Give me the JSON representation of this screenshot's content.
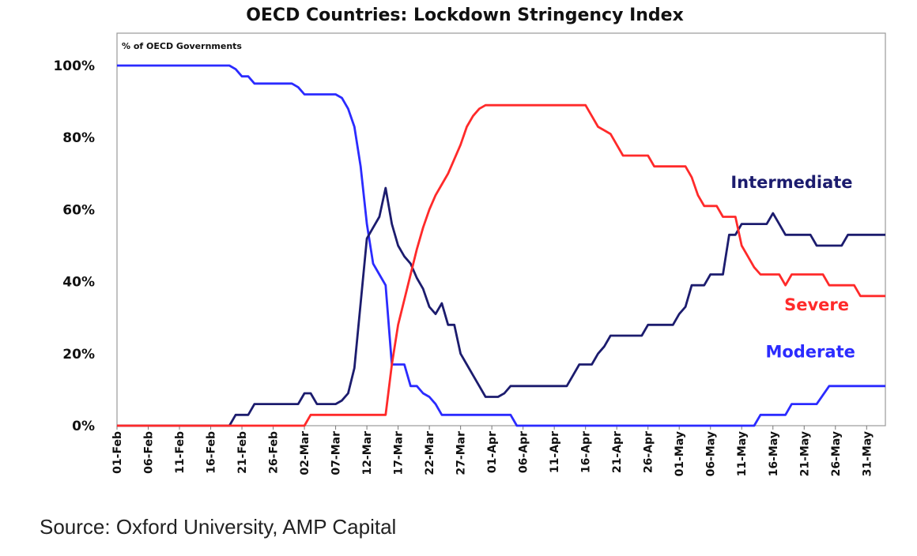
{
  "chart_data": {
    "type": "line",
    "title": "OECD Countries: Lockdown Stringency Index",
    "ylabel": "% of OECD Governments",
    "xlabel": "",
    "ylim": [
      0,
      100
    ],
    "y_ticks": [
      "0%",
      "20%",
      "40%",
      "60%",
      "80%",
      "100%"
    ],
    "x_start": "2020-02-01",
    "x_end": "2020-06-03",
    "x_ticks": [
      "01-Feb",
      "06-Feb",
      "11-Feb",
      "16-Feb",
      "21-Feb",
      "26-Feb",
      "02-Mar",
      "07-Mar",
      "12-Mar",
      "17-Mar",
      "22-Mar",
      "27-Mar",
      "01-Apr",
      "06-Apr",
      "11-Apr",
      "16-Apr",
      "21-Apr",
      "26-Apr",
      "01-May",
      "06-May",
      "11-May",
      "16-May",
      "21-May",
      "26-May",
      "31-May"
    ],
    "grid": false,
    "series": [
      {
        "name": "Moderate",
        "color": "#2b2bff",
        "points": [
          [
            "2020-02-01",
            100
          ],
          [
            "2020-02-19",
            100
          ],
          [
            "2020-02-20",
            99
          ],
          [
            "2020-02-21",
            97
          ],
          [
            "2020-02-22",
            97
          ],
          [
            "2020-02-23",
            95
          ],
          [
            "2020-02-24",
            95
          ],
          [
            "2020-02-29",
            95
          ],
          [
            "2020-03-01",
            94
          ],
          [
            "2020-03-02",
            92
          ],
          [
            "2020-03-07",
            92
          ],
          [
            "2020-03-08",
            91
          ],
          [
            "2020-03-09",
            88
          ],
          [
            "2020-03-10",
            83
          ],
          [
            "2020-03-11",
            72
          ],
          [
            "2020-03-12",
            56
          ],
          [
            "2020-03-13",
            45
          ],
          [
            "2020-03-14",
            42
          ],
          [
            "2020-03-15",
            39
          ],
          [
            "2020-03-16",
            17
          ],
          [
            "2020-03-17",
            17
          ],
          [
            "2020-03-18",
            17
          ],
          [
            "2020-03-19",
            11
          ],
          [
            "2020-03-20",
            11
          ],
          [
            "2020-03-21",
            9
          ],
          [
            "2020-03-22",
            8
          ],
          [
            "2020-03-23",
            6
          ],
          [
            "2020-03-24",
            3
          ],
          [
            "2020-03-31",
            3
          ],
          [
            "2020-04-04",
            3
          ],
          [
            "2020-04-05",
            0
          ],
          [
            "2020-05-13",
            0
          ],
          [
            "2020-05-14",
            3
          ],
          [
            "2020-05-18",
            3
          ],
          [
            "2020-05-19",
            6
          ],
          [
            "2020-05-23",
            6
          ],
          [
            "2020-05-25",
            11
          ],
          [
            "2020-06-03",
            11
          ]
        ]
      },
      {
        "name": "Intermediate",
        "color": "#1c1c6e",
        "points": [
          [
            "2020-02-01",
            0
          ],
          [
            "2020-02-19",
            0
          ],
          [
            "2020-02-20",
            3
          ],
          [
            "2020-02-22",
            3
          ],
          [
            "2020-02-23",
            6
          ],
          [
            "2020-02-29",
            6
          ],
          [
            "2020-03-01",
            6
          ],
          [
            "2020-03-02",
            9
          ],
          [
            "2020-03-03",
            9
          ],
          [
            "2020-03-04",
            6
          ],
          [
            "2020-03-07",
            6
          ],
          [
            "2020-03-08",
            7
          ],
          [
            "2020-03-09",
            9
          ],
          [
            "2020-03-10",
            16
          ],
          [
            "2020-03-11",
            34
          ],
          [
            "2020-03-12",
            52
          ],
          [
            "2020-03-13",
            55
          ],
          [
            "2020-03-14",
            58
          ],
          [
            "2020-03-15",
            66
          ],
          [
            "2020-03-16",
            56
          ],
          [
            "2020-03-17",
            50
          ],
          [
            "2020-03-18",
            47
          ],
          [
            "2020-03-19",
            45
          ],
          [
            "2020-03-20",
            41
          ],
          [
            "2020-03-21",
            38
          ],
          [
            "2020-03-22",
            33
          ],
          [
            "2020-03-23",
            31
          ],
          [
            "2020-03-24",
            34
          ],
          [
            "2020-03-25",
            28
          ],
          [
            "2020-03-26",
            28
          ],
          [
            "2020-03-27",
            20
          ],
          [
            "2020-03-28",
            17
          ],
          [
            "2020-03-29",
            14
          ],
          [
            "2020-03-30",
            11
          ],
          [
            "2020-03-31",
            8
          ],
          [
            "2020-04-02",
            8
          ],
          [
            "2020-04-03",
            9
          ],
          [
            "2020-04-04",
            11
          ],
          [
            "2020-04-13",
            11
          ],
          [
            "2020-04-14",
            14
          ],
          [
            "2020-04-15",
            17
          ],
          [
            "2020-04-17",
            17
          ],
          [
            "2020-04-18",
            20
          ],
          [
            "2020-04-19",
            22
          ],
          [
            "2020-04-20",
            25
          ],
          [
            "2020-04-25",
            25
          ],
          [
            "2020-04-26",
            28
          ],
          [
            "2020-04-30",
            28
          ],
          [
            "2020-05-01",
            31
          ],
          [
            "2020-05-02",
            33
          ],
          [
            "2020-05-03",
            39
          ],
          [
            "2020-05-05",
            39
          ],
          [
            "2020-05-06",
            42
          ],
          [
            "2020-05-08",
            42
          ],
          [
            "2020-05-09",
            53
          ],
          [
            "2020-05-10",
            53
          ],
          [
            "2020-05-11",
            56
          ],
          [
            "2020-05-15",
            56
          ],
          [
            "2020-05-16",
            59
          ],
          [
            "2020-05-17",
            56
          ],
          [
            "2020-05-18",
            53
          ],
          [
            "2020-05-22",
            53
          ],
          [
            "2020-05-23",
            50
          ],
          [
            "2020-05-27",
            50
          ],
          [
            "2020-05-28",
            53
          ],
          [
            "2020-06-03",
            53
          ]
        ]
      },
      {
        "name": "Severe",
        "color": "#ff2a2a",
        "points": [
          [
            "2020-02-01",
            0
          ],
          [
            "2020-03-02",
            0
          ],
          [
            "2020-03-03",
            3
          ],
          [
            "2020-03-15",
            3
          ],
          [
            "2020-03-16",
            17
          ],
          [
            "2020-03-17",
            28
          ],
          [
            "2020-03-18",
            35
          ],
          [
            "2020-03-19",
            42
          ],
          [
            "2020-03-20",
            49
          ],
          [
            "2020-03-21",
            55
          ],
          [
            "2020-03-22",
            60
          ],
          [
            "2020-03-23",
            64
          ],
          [
            "2020-03-24",
            67
          ],
          [
            "2020-03-25",
            70
          ],
          [
            "2020-03-26",
            74
          ],
          [
            "2020-03-27",
            78
          ],
          [
            "2020-03-28",
            83
          ],
          [
            "2020-03-29",
            86
          ],
          [
            "2020-03-30",
            88
          ],
          [
            "2020-03-31",
            89
          ],
          [
            "2020-04-16",
            89
          ],
          [
            "2020-04-17",
            86
          ],
          [
            "2020-04-18",
            83
          ],
          [
            "2020-04-20",
            81
          ],
          [
            "2020-04-21",
            78
          ],
          [
            "2020-04-22",
            75
          ],
          [
            "2020-04-26",
            75
          ],
          [
            "2020-04-27",
            72
          ],
          [
            "2020-05-02",
            72
          ],
          [
            "2020-05-03",
            69
          ],
          [
            "2020-05-04",
            64
          ],
          [
            "2020-05-05",
            61
          ],
          [
            "2020-05-07",
            61
          ],
          [
            "2020-05-08",
            58
          ],
          [
            "2020-05-10",
            58
          ],
          [
            "2020-05-11",
            50
          ],
          [
            "2020-05-12",
            47
          ],
          [
            "2020-05-13",
            44
          ],
          [
            "2020-05-14",
            42
          ],
          [
            "2020-05-17",
            42
          ],
          [
            "2020-05-18",
            39
          ],
          [
            "2020-05-19",
            42
          ],
          [
            "2020-05-24",
            42
          ],
          [
            "2020-05-25",
            39
          ],
          [
            "2020-05-29",
            39
          ],
          [
            "2020-05-30",
            36
          ],
          [
            "2020-06-03",
            36
          ]
        ]
      }
    ],
    "annotations": [
      {
        "series": "Intermediate",
        "text": "Intermediate",
        "color": "#1c1c6e",
        "at": [
          "2020-05-19",
          66
        ]
      },
      {
        "series": "Severe",
        "text": "Severe",
        "color": "#ff2a2a",
        "at": [
          "2020-05-23",
          32
        ]
      },
      {
        "series": "Moderate",
        "text": "Moderate",
        "color": "#2b2bff",
        "at": [
          "2020-05-22",
          19
        ]
      }
    ]
  },
  "footer": {
    "source": "Source: Oxford University, AMP Capital"
  }
}
